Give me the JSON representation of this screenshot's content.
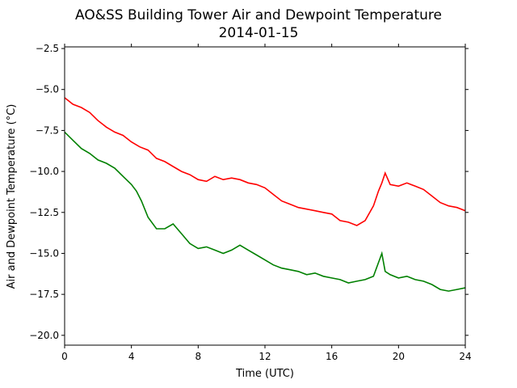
{
  "chart_data": {
    "type": "line",
    "title": "AO&SS Building Tower Air and Dewpoint Temperature",
    "subtitle": "2014-01-15",
    "xlabel": "Time (UTC)",
    "ylabel": "Air and Dewpoint Temperature (°C)",
    "xlim": [
      0,
      24
    ],
    "ylim": [
      -20.6,
      -2.4
    ],
    "x_ticks": [
      0,
      4,
      8,
      12,
      16,
      20,
      24
    ],
    "y_ticks": [
      -2.5,
      -5.0,
      -7.5,
      -10.0,
      -12.5,
      -15.0,
      -17.5,
      -20.0
    ],
    "x_tick_labels": [
      "0",
      "4",
      "8",
      "12",
      "16",
      "20",
      "24"
    ],
    "y_tick_labels": [
      "−2.5",
      "−5.0",
      "−7.5",
      "−10.0",
      "−12.5",
      "−15.0",
      "−17.5",
      "−20.0"
    ],
    "grid": false,
    "legend": "none",
    "series": [
      {
        "color": "#ff0000",
        "x": [
          0,
          0.5,
          1,
          1.5,
          2,
          2.5,
          3,
          3.5,
          4,
          4.5,
          5,
          5.5,
          6,
          6.5,
          7,
          7.5,
          8,
          8.5,
          9,
          9.5,
          10,
          10.5,
          11,
          11.5,
          12,
          12.5,
          13,
          13.5,
          14,
          14.5,
          15,
          15.5,
          16,
          16.5,
          17,
          17.5,
          18,
          18.5,
          18.8,
          19,
          19.2,
          19.5,
          20,
          20.5,
          21,
          21.5,
          22,
          22.5,
          23,
          23.5,
          24
        ],
        "y": [
          -5.5,
          -5.9,
          -6.1,
          -6.4,
          -6.9,
          -7.3,
          -7.6,
          -7.8,
          -8.2,
          -8.5,
          -8.7,
          -9.2,
          -9.4,
          -9.7,
          -10.0,
          -10.2,
          -10.5,
          -10.6,
          -10.3,
          -10.5,
          -10.4,
          -10.5,
          -10.7,
          -10.8,
          -11.0,
          -11.4,
          -11.8,
          -12.0,
          -12.2,
          -12.3,
          -12.4,
          -12.5,
          -12.6,
          -13.0,
          -13.1,
          -13.3,
          -13.0,
          -12.1,
          -11.2,
          -10.7,
          -10.1,
          -10.8,
          -10.9,
          -10.7,
          -10.9,
          -11.1,
          -11.5,
          -11.9,
          -12.1,
          -12.2,
          -12.4
        ]
      },
      {
        "color": "#008000",
        "x": [
          0,
          0.5,
          1,
          1.5,
          2,
          2.5,
          3,
          3.5,
          4,
          4.3,
          4.6,
          5,
          5.5,
          6,
          6.5,
          7,
          7.5,
          8,
          8.5,
          9,
          9.5,
          10,
          10.5,
          11,
          11.5,
          12,
          12.5,
          13,
          13.5,
          14,
          14.5,
          15,
          15.5,
          16,
          16.5,
          17,
          17.5,
          18,
          18.5,
          19,
          19.2,
          19.5,
          20,
          20.5,
          21,
          21.5,
          22,
          22.5,
          23,
          23.5,
          24
        ],
        "y": [
          -7.6,
          -8.1,
          -8.6,
          -8.9,
          -9.3,
          -9.5,
          -9.8,
          -10.3,
          -10.8,
          -11.2,
          -11.8,
          -12.8,
          -13.5,
          -13.5,
          -13.2,
          -13.8,
          -14.4,
          -14.7,
          -14.6,
          -14.8,
          -15.0,
          -14.8,
          -14.5,
          -14.8,
          -15.1,
          -15.4,
          -15.7,
          -15.9,
          -16.0,
          -16.1,
          -16.3,
          -16.2,
          -16.4,
          -16.5,
          -16.6,
          -16.8,
          -16.7,
          -16.6,
          -16.4,
          -15.0,
          -16.1,
          -16.3,
          -16.5,
          -16.4,
          -16.6,
          -16.7,
          -16.9,
          -17.2,
          -17.3,
          -17.2,
          -17.1
        ]
      }
    ]
  }
}
